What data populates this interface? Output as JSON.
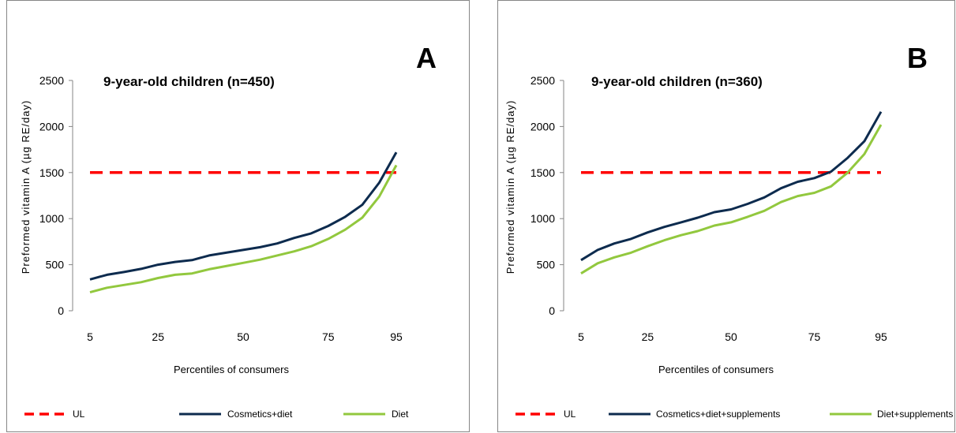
{
  "chart_data": [
    {
      "type": "line",
      "panel_letter": "A",
      "title": "9-year-old children (n=450)",
      "xlabel": "Percentiles of consumers",
      "ylabel": "Preformed vitamin A (µg RE/day)",
      "xlim": [
        5,
        95
      ],
      "ylim": [
        0,
        2500
      ],
      "x_ticks": [
        5,
        25,
        50,
        75,
        95
      ],
      "y_ticks": [
        0,
        500,
        1000,
        1500,
        2000,
        2500
      ],
      "grid": false,
      "legend_position": "bottom",
      "x": [
        5,
        10,
        15,
        20,
        25,
        30,
        35,
        40,
        45,
        50,
        55,
        60,
        65,
        70,
        75,
        80,
        85,
        90,
        95
      ],
      "series": [
        {
          "name": "UL",
          "style": "dashed",
          "color": "#ff0000",
          "values": [
            1500,
            1500,
            1500,
            1500,
            1500,
            1500,
            1500,
            1500,
            1500,
            1500,
            1500,
            1500,
            1500,
            1500,
            1500,
            1500,
            1500,
            1500,
            1500
          ]
        },
        {
          "name": "Cosmetics+diet",
          "style": "solid",
          "color": "#0d2b4e",
          "values": [
            340,
            390,
            420,
            455,
            500,
            530,
            550,
            600,
            630,
            660,
            690,
            730,
            790,
            840,
            920,
            1020,
            1150,
            1390,
            1720
          ]
        },
        {
          "name": "Diet",
          "style": "solid",
          "color": "#92c83e",
          "values": [
            200,
            250,
            280,
            310,
            355,
            390,
            405,
            450,
            485,
            520,
            555,
            600,
            645,
            700,
            780,
            880,
            1010,
            1240,
            1580
          ]
        }
      ]
    },
    {
      "type": "line",
      "panel_letter": "B",
      "title": "9-year-old children (n=360)",
      "xlabel": "Percentiles of consumers",
      "ylabel": "Preformed vitamin A (µg RE/day)",
      "xlim": [
        5,
        95
      ],
      "ylim": [
        0,
        2500
      ],
      "x_ticks": [
        5,
        25,
        50,
        75,
        95
      ],
      "y_ticks": [
        0,
        500,
        1000,
        1500,
        2000,
        2500
      ],
      "grid": false,
      "legend_position": "bottom",
      "x": [
        5,
        10,
        15,
        20,
        25,
        30,
        35,
        40,
        45,
        50,
        55,
        60,
        65,
        70,
        75,
        80,
        85,
        90,
        95
      ],
      "series": [
        {
          "name": "UL",
          "style": "dashed",
          "color": "#ff0000",
          "values": [
            1500,
            1500,
            1500,
            1500,
            1500,
            1500,
            1500,
            1500,
            1500,
            1500,
            1500,
            1500,
            1500,
            1500,
            1500,
            1500,
            1500,
            1500,
            1500
          ]
        },
        {
          "name": "Cosmetics+diet+supplements",
          "style": "solid",
          "color": "#0d2b4e",
          "values": [
            550,
            660,
            730,
            780,
            850,
            910,
            960,
            1010,
            1070,
            1100,
            1160,
            1230,
            1330,
            1400,
            1440,
            1510,
            1660,
            1840,
            2160
          ]
        },
        {
          "name": "Diet+supplements",
          "style": "solid",
          "color": "#92c83e",
          "values": [
            405,
            515,
            580,
            630,
            700,
            765,
            820,
            865,
            925,
            960,
            1020,
            1085,
            1180,
            1245,
            1280,
            1350,
            1500,
            1700,
            2020
          ]
        }
      ]
    }
  ]
}
